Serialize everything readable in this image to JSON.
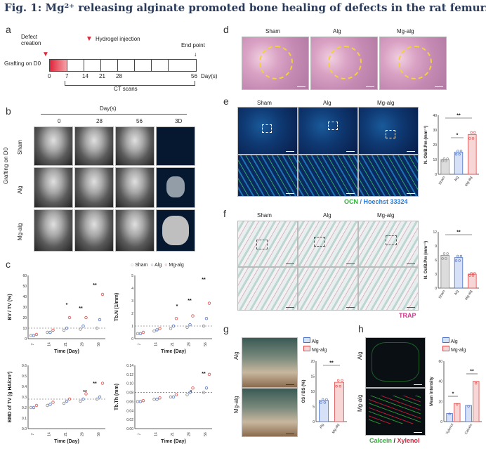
{
  "figure_title": "Fig. 1: Mg²⁺ releasing alginate promoted bone healing of defects in the rat femur.",
  "panels": {
    "a": "a",
    "b": "b",
    "c": "c",
    "d": "d",
    "e": "e",
    "f": "f",
    "g": "g",
    "h": "h"
  },
  "timeline": {
    "defect_creation": "Defect creation",
    "hydrogel_injection": "Hydrogel injection",
    "end_point": "End point",
    "grafting": "Grafting on D0",
    "ticks": [
      "0",
      "7",
      "14",
      "21",
      "28",
      "56"
    ],
    "unit": "Day(s)",
    "ct_scans": "CT scans"
  },
  "panel_b": {
    "days_header": "Day(s)",
    "cols": [
      "0",
      "28",
      "56",
      "3D"
    ],
    "rows": [
      "Sham",
      "Alg",
      "Mg-alg"
    ],
    "side_label": "Grafting on D0"
  },
  "panel_c": {
    "legend": [
      "Sham",
      "Alg",
      "Mg-alg"
    ],
    "xlabel": "Time (Day)",
    "days": [
      "7",
      "14",
      "21",
      "28",
      "56"
    ],
    "sig_marks": [
      "*",
      "**",
      "**",
      "*",
      "**",
      "**",
      "**",
      "**",
      "*",
      "**"
    ]
  },
  "panel_d": {
    "cols": [
      "Sham",
      "Alg",
      "Mg-alg"
    ]
  },
  "panel_e": {
    "cols": [
      "Sham",
      "Alg",
      "Mg-alg"
    ],
    "stain": "OCN / Hoechst 33324",
    "stain_a": "OCN",
    "stain_b": "Hoechst 33324",
    "ylabel": "N. Ob/B.Pm (mm⁻¹)",
    "sig": [
      "*",
      "**"
    ],
    "groups": [
      "Sham",
      "Alg",
      "Mg-alg"
    ]
  },
  "panel_f": {
    "cols": [
      "Sham",
      "Alg",
      "Mg-alg"
    ],
    "stain": "TRAP",
    "ylabel": "N. Oc/B.Pm (mm⁻¹)",
    "sig": [
      "**"
    ],
    "groups": [
      "Sham",
      "Alg",
      "Mg-alg"
    ]
  },
  "panel_g": {
    "rows": [
      "Alg",
      "Mg-alg"
    ],
    "legend": [
      "Alg",
      "Mg-alg"
    ],
    "ylabel": "OS / BS (%)",
    "sig": [
      "**"
    ]
  },
  "panel_h": {
    "rows": [
      "Alg",
      "Mg-alg"
    ],
    "legend": [
      "Alg",
      "Mg-alg"
    ],
    "stain_a": "Calcein",
    "stain_b": "Xylenol",
    "ylabel": "Mean intensity",
    "groups": [
      "Xylenol",
      "Calcein"
    ],
    "sig": [
      "*",
      "**"
    ]
  },
  "colors": {
    "sham": "#888888",
    "alg": "#4a6fc7",
    "mgalg": "#e04a4a",
    "calcein": "#2fae3a",
    "xylenol": "#d6223a",
    "ocn": "#2fae3a",
    "hoechst": "#2a7bd6",
    "trap": "#d23b8f"
  },
  "chart_data": [
    {
      "type": "scatter",
      "title": "",
      "ylabel": "BV / TV (%)",
      "xlabel": "Time (Day)",
      "categories": [
        "7",
        "14",
        "21",
        "28",
        "56"
      ],
      "ylim": [
        0,
        60
      ],
      "yticks": [
        "0",
        "10",
        "20",
        "30",
        "40",
        "50",
        "60"
      ],
      "series": [
        {
          "name": "Sham",
          "values": [
            3,
            6,
            8,
            9,
            10
          ]
        },
        {
          "name": "Alg",
          "values": [
            3,
            6,
            10,
            12,
            18
          ]
        },
        {
          "name": "Mg-alg",
          "values": [
            4,
            8,
            20,
            20,
            42
          ]
        }
      ]
    },
    {
      "type": "scatter",
      "title": "",
      "ylabel": "Tb.N (1/mm)",
      "xlabel": "Time (Day)",
      "categories": [
        "7",
        "14",
        "21",
        "28",
        "56"
      ],
      "ylim": [
        0,
        5
      ],
      "yticks": [
        "0",
        "1",
        "2",
        "3",
        "4",
        "5"
      ],
      "series": [
        {
          "name": "Sham",
          "values": [
            0.4,
            0.6,
            0.8,
            0.9,
            1.0
          ]
        },
        {
          "name": "Alg",
          "values": [
            0.4,
            0.7,
            1.0,
            1.1,
            1.6
          ]
        },
        {
          "name": "Mg-alg",
          "values": [
            0.5,
            0.8,
            1.6,
            1.8,
            2.8
          ]
        }
      ]
    },
    {
      "type": "scatter",
      "title": "",
      "ylabel": "BMD of TV (g HA/cm³)",
      "xlabel": "Time (Day)",
      "categories": [
        "7",
        "14",
        "21",
        "28",
        "56"
      ],
      "ylim": [
        0,
        0.6
      ],
      "yticks": [
        "0.0",
        "0.1",
        "0.2",
        "0.3",
        "0.4",
        "0.5",
        "0.6"
      ],
      "series": [
        {
          "name": "Sham",
          "values": [
            0.2,
            0.22,
            0.24,
            0.26,
            0.28
          ]
        },
        {
          "name": "Alg",
          "values": [
            0.2,
            0.23,
            0.26,
            0.28,
            0.3
          ]
        },
        {
          "name": "Mg-alg",
          "values": [
            0.22,
            0.25,
            0.28,
            0.33,
            0.43
          ]
        }
      ]
    },
    {
      "type": "scatter",
      "title": "",
      "ylabel": "Tb.Th (mm)",
      "xlabel": "Time (Day)",
      "categories": [
        "7",
        "14",
        "21",
        "28",
        "56"
      ],
      "ylim": [
        0,
        0.14
      ],
      "yticks": [
        "0.00",
        "0.02",
        "0.04",
        "0.06",
        "0.08",
        "0.10",
        "0.12",
        "0.14"
      ],
      "series": [
        {
          "name": "Sham",
          "values": [
            0.06,
            0.065,
            0.07,
            0.075,
            0.08
          ]
        },
        {
          "name": "Alg",
          "values": [
            0.06,
            0.065,
            0.07,
            0.08,
            0.09
          ]
        },
        {
          "name": "Mg-alg",
          "values": [
            0.062,
            0.068,
            0.075,
            0.09,
            0.12
          ]
        }
      ]
    },
    {
      "type": "bar",
      "title": "",
      "ylabel": "N. Ob/B.Pm (mm⁻¹)",
      "categories": [
        "Sham",
        "Alg",
        "Mg-alg"
      ],
      "values": [
        10,
        15,
        27
      ],
      "ylim": [
        0,
        40
      ],
      "yticks": [
        "0",
        "10",
        "20",
        "30",
        "40"
      ]
    },
    {
      "type": "bar",
      "title": "",
      "ylabel": "N. Oc/B.Pm (mm⁻¹)",
      "categories": [
        "Sham",
        "Alg",
        "Mg-alg"
      ],
      "values": [
        7,
        6.5,
        3
      ],
      "ylim": [
        0,
        12
      ],
      "yticks": [
        "0",
        "3",
        "6",
        "9",
        "12"
      ]
    },
    {
      "type": "bar",
      "title": "",
      "ylabel": "OS / BS (%)",
      "categories": [
        "Alg",
        "Mg-alg"
      ],
      "values": [
        7,
        13
      ],
      "ylim": [
        0,
        20
      ],
      "yticks": [
        "0",
        "5",
        "10",
        "15",
        "20"
      ]
    },
    {
      "type": "bar",
      "title": "",
      "ylabel": "Mean intensity",
      "categories": [
        "Xylenol",
        "Calcein"
      ],
      "series": [
        {
          "name": "Alg",
          "values": [
            8,
            16
          ]
        },
        {
          "name": "Mg-alg",
          "values": [
            18,
            40
          ]
        }
      ],
      "ylim": [
        0,
        60
      ],
      "yticks": [
        "0",
        "20",
        "40",
        "60"
      ]
    }
  ]
}
